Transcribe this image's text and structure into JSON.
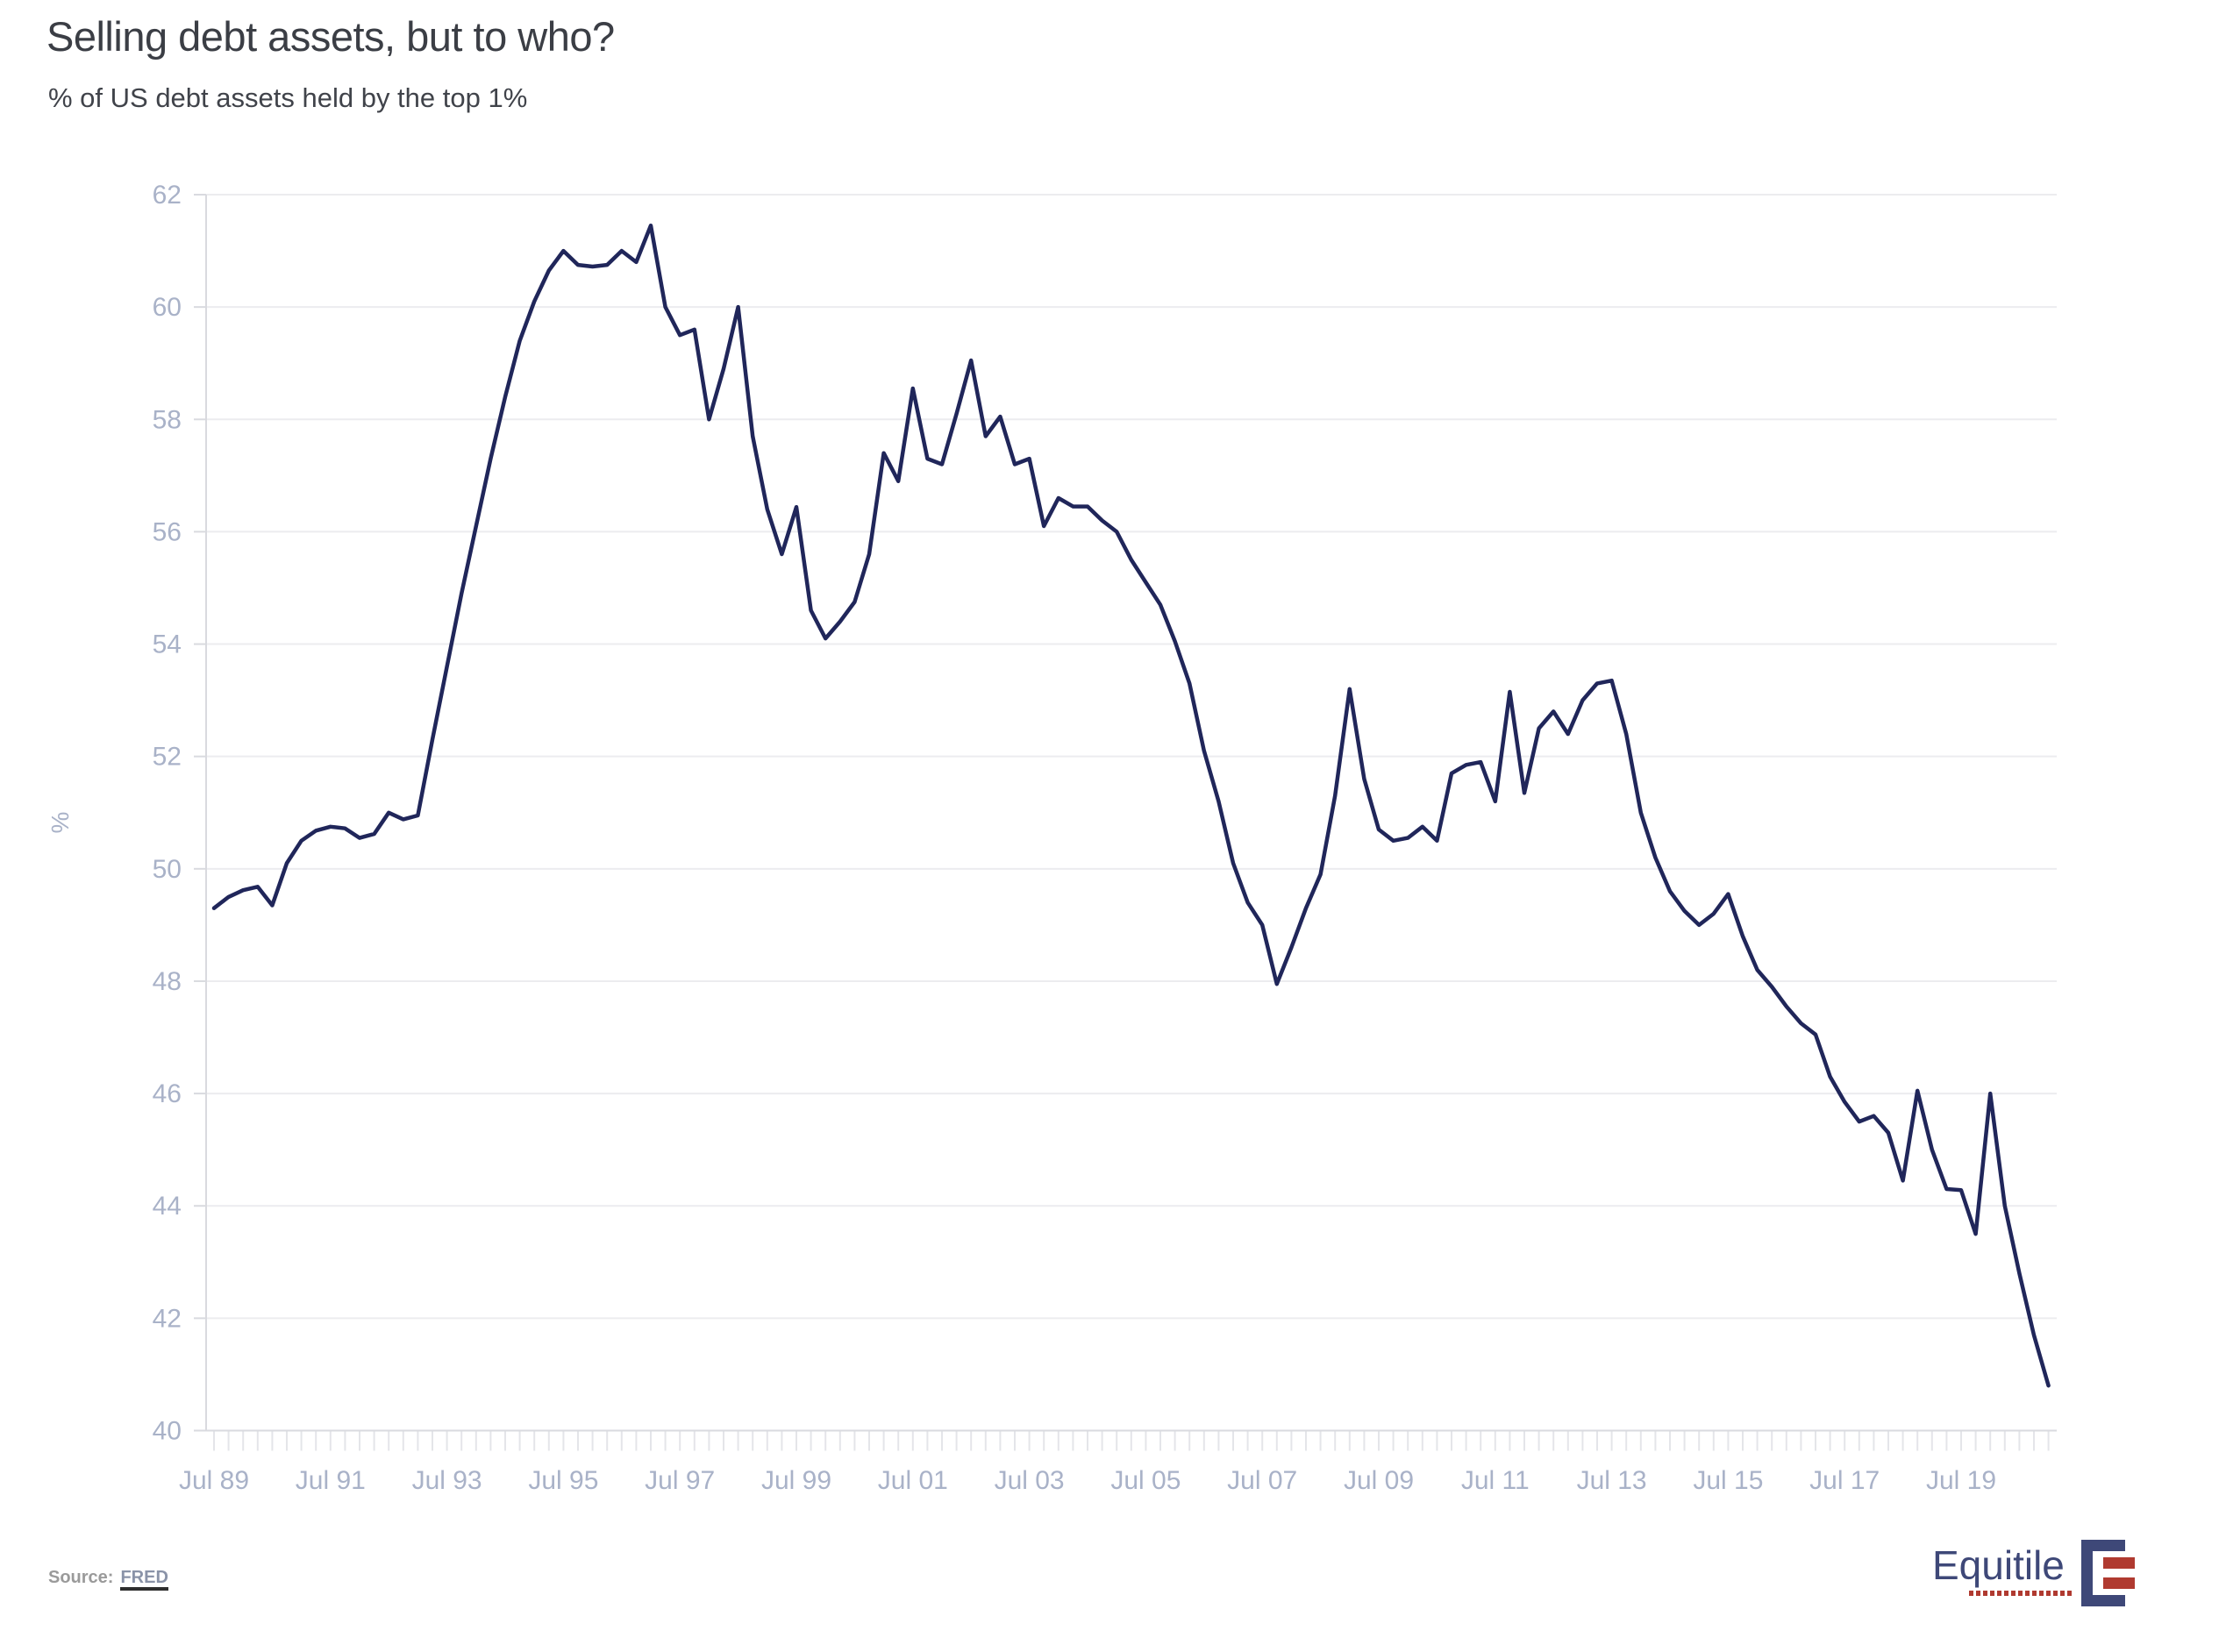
{
  "header": {
    "title": "Selling debt assets, but to who?",
    "subtitle": "% of US debt assets held by the top 1%"
  },
  "source": {
    "label": "Source:",
    "link_text": "FRED"
  },
  "logo": {
    "word": "Equitile"
  },
  "colors": {
    "line": "#20265a",
    "grid": "#ececef",
    "axis": "#d9dadf",
    "minor_tick": "#e4e5e9",
    "tick_label": "#a9b2c8",
    "title_text": "#3b3e45",
    "logo_navy": "#3e4878",
    "logo_red": "#b03a30"
  },
  "chart_data": {
    "type": "line",
    "title": "Selling debt assets, but to who?",
    "subtitle": "% of US debt assets held by the top 1%",
    "xlabel": "",
    "ylabel": "%",
    "ylim": [
      40,
      62
    ],
    "grid": "horizontal",
    "legend": "none",
    "yticks": [
      40,
      42,
      44,
      46,
      48,
      50,
      52,
      54,
      56,
      58,
      60,
      62
    ],
    "xticklabels": [
      "Jul 89",
      "Jul 91",
      "Jul 93",
      "Jul 95",
      "Jul 97",
      "Jul 99",
      "Jul 01",
      "Jul 03",
      "Jul 05",
      "Jul 07",
      "Jul 09",
      "Jul 11",
      "Jul 13",
      "Jul 15",
      "Jul 17",
      "Jul 19"
    ],
    "series": [
      {
        "name": "% of US debt assets held by the top 1%",
        "start": "1989 Q3",
        "frequency": "quarterly",
        "values": [
          49.3,
          49.5,
          49.62,
          49.68,
          49.35,
          50.1,
          50.5,
          50.68,
          50.75,
          50.72,
          50.55,
          50.62,
          51.0,
          50.88,
          50.95,
          52.3,
          53.6,
          54.9,
          56.1,
          57.3,
          58.4,
          59.4,
          60.1,
          60.65,
          61.0,
          60.75,
          60.72,
          60.75,
          61.0,
          60.8,
          61.45,
          60.0,
          59.5,
          59.6,
          58.0,
          58.9,
          60.0,
          57.7,
          56.4,
          55.6,
          56.44,
          54.6,
          54.1,
          54.4,
          54.75,
          55.6,
          57.4,
          56.9,
          58.55,
          57.3,
          57.2,
          58.1,
          59.05,
          57.7,
          58.05,
          57.2,
          57.3,
          56.1,
          56.6,
          56.45,
          56.45,
          56.2,
          56.0,
          55.5,
          55.1,
          54.7,
          54.05,
          53.3,
          52.1,
          51.2,
          50.1,
          49.4,
          49.0,
          47.95,
          48.6,
          49.3,
          49.9,
          51.3,
          53.2,
          51.6,
          50.7,
          50.5,
          50.55,
          50.75,
          50.5,
          51.7,
          51.85,
          51.9,
          51.2,
          53.15,
          51.35,
          52.5,
          52.8,
          52.4,
          53.0,
          53.3,
          53.35,
          52.4,
          51.0,
          50.2,
          49.6,
          49.25,
          49.0,
          49.2,
          49.55,
          48.8,
          48.2,
          47.9,
          47.55,
          47.25,
          47.05,
          46.3,
          45.85,
          45.5,
          45.6,
          45.3,
          44.45,
          46.05,
          45.0,
          44.3,
          44.28,
          43.5,
          46.0,
          44.0,
          42.8,
          41.7,
          40.8
        ]
      }
    ]
  }
}
